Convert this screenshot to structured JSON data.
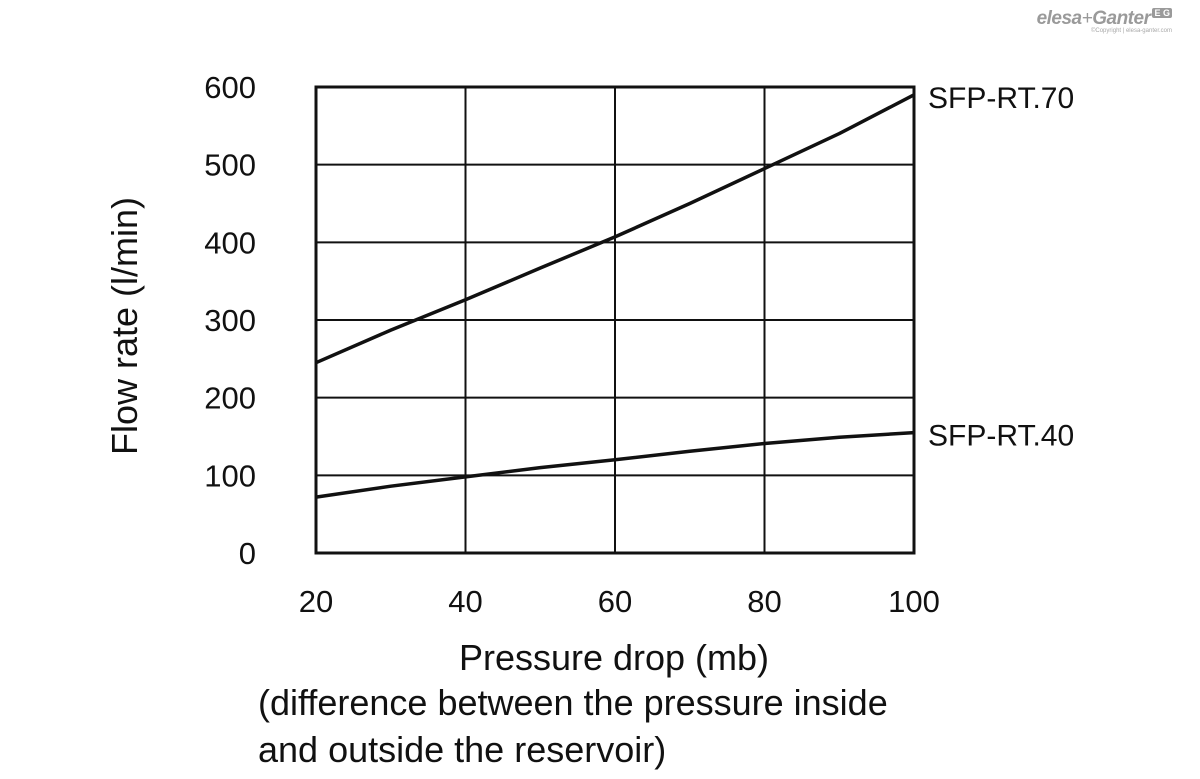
{
  "brand": {
    "name_left": "elesa",
    "name_plus": "+",
    "name_right": "Ganter",
    "badge": "E G",
    "copyright": "©Copyright | elesa-ganter.com"
  },
  "chart_data": {
    "type": "line",
    "xlabel": "Pressure drop (mb)",
    "xlabel_note_lines": [
      "(difference between the pressure inside",
      "and outside the reservoir)"
    ],
    "ylabel": "Flow rate (l/min)",
    "xlim": [
      20,
      100
    ],
    "ylim": [
      0,
      600
    ],
    "x_ticks": [
      "20",
      "40",
      "60",
      "80",
      "100"
    ],
    "y_ticks": [
      "0",
      "100",
      "200",
      "300",
      "400",
      "500",
      "600"
    ],
    "x_tick_values": [
      20,
      40,
      60,
      80,
      100
    ],
    "y_tick_values": [
      0,
      100,
      200,
      300,
      400,
      500,
      600
    ],
    "grid": true,
    "legend": "end-of-line labels (right)",
    "series": [
      {
        "name": "SFP-RT.70",
        "x": [
          20,
          30,
          40,
          50,
          60,
          70,
          80,
          90,
          100
        ],
        "y": [
          245,
          287,
          326,
          367,
          407,
          450,
          495,
          540,
          590
        ]
      },
      {
        "name": "SFP-RT.40",
        "x": [
          20,
          30,
          40,
          50,
          60,
          70,
          80,
          90,
          100
        ],
        "y": [
          72,
          86,
          98,
          110,
          120,
          131,
          141,
          149,
          155
        ]
      }
    ]
  }
}
